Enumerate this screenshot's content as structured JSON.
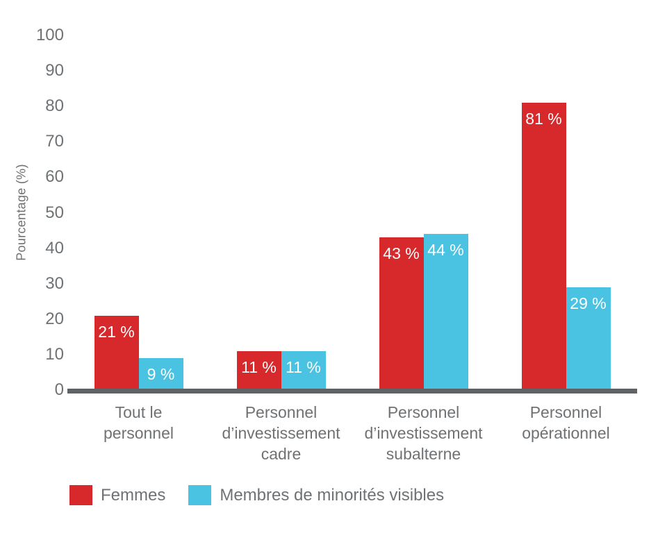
{
  "chart_data": {
    "type": "bar",
    "title": "",
    "ylabel": "Pourcentage (%)",
    "ylim": [
      0,
      100
    ],
    "yticks": [
      0,
      10,
      20,
      30,
      40,
      50,
      60,
      70,
      80,
      90,
      100
    ],
    "grid": false,
    "legend_position": "bottom",
    "categories": [
      "Tout le personnel",
      "Personnel d’investissement cadre",
      "Personnel d’investissement subalterne",
      "Personnel opérationnel"
    ],
    "category_lines": [
      [
        "Tout le",
        "personnel"
      ],
      [
        "Personnel",
        "d’investissement",
        "cadre"
      ],
      [
        "Personnel",
        "d’investissement",
        "subalterne"
      ],
      [
        "Personnel",
        "opérationnel"
      ]
    ],
    "series": [
      {
        "name": "Femmes",
        "color": "#d7282b",
        "values": [
          21,
          11,
          43,
          81
        ],
        "value_labels": [
          "21 %",
          "11 %",
          "43 %",
          "81 %"
        ]
      },
      {
        "name": "Membres de minorités visibles",
        "color": "#4ac3e2",
        "values": [
          9,
          11,
          44,
          29
        ],
        "value_labels": [
          "9 %",
          "11 %",
          "44 %",
          "29 %"
        ]
      }
    ],
    "colors": {
      "axis_line": "#5f6366",
      "text": "#6f7275",
      "value_label": "#ffffff"
    }
  }
}
